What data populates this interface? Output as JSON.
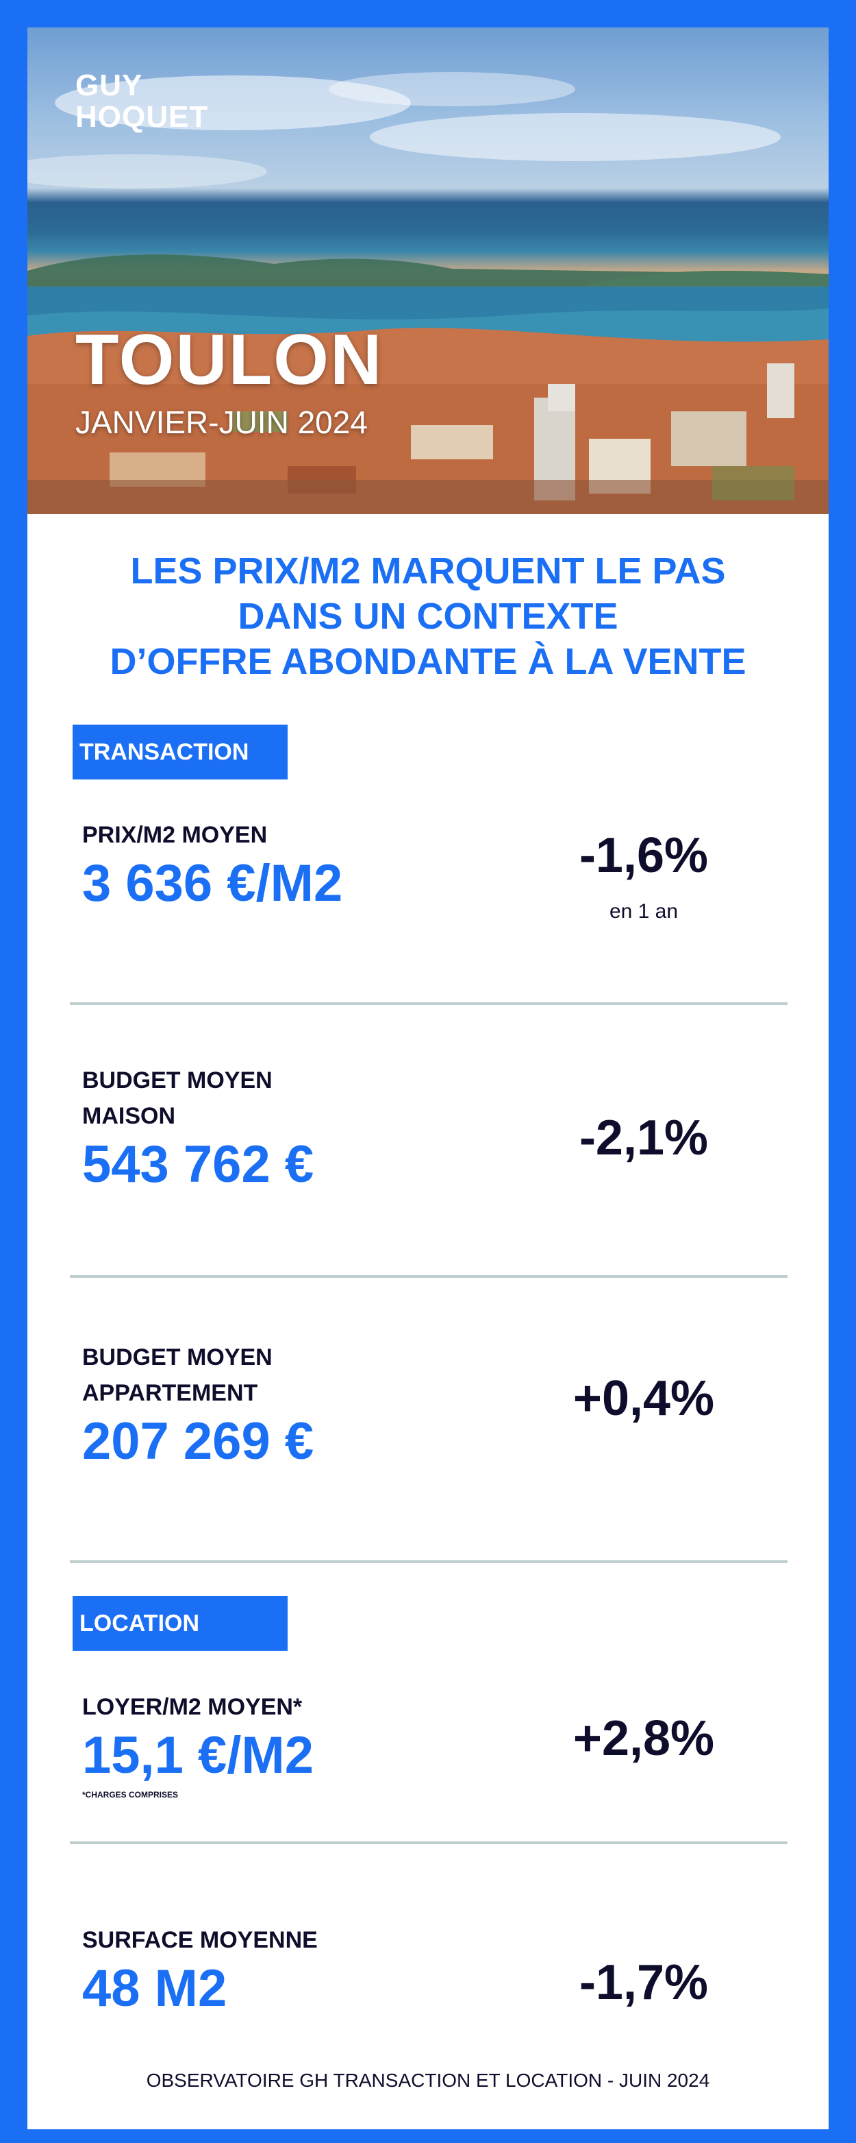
{
  "brand": {
    "logo_line1": "GUY",
    "logo_line2": "HOQUET"
  },
  "hero": {
    "city": "TOULON",
    "period": "JANVIER-JUIN 2024"
  },
  "headline": [
    "LES PRIX/M2 MARQUENT LE PAS",
    "DANS UN CONTEXTE",
    "D’OFFRE ABONDANTE À LA VENTE"
  ],
  "sections": {
    "transaction": "TRANSACTION",
    "location": "LOCATION"
  },
  "metrics": {
    "prix_m2": {
      "label": "PRIX/M2 MOYEN",
      "value": "3 636 €/M2",
      "delta": "-1,6%",
      "delta_note": "en 1 an"
    },
    "budget_maison": {
      "label_line1": "BUDGET MOYEN",
      "label_line2": "MAISON",
      "value": "543 762 €",
      "delta": "-2,1%"
    },
    "budget_appartement": {
      "label_line1": "BUDGET MOYEN",
      "label_line2": "APPARTEMENT",
      "value": "207 269 €",
      "delta": "+0,4%"
    },
    "loyer_m2": {
      "label": "LOYER/M2 MOYEN*",
      "value": "15,1 €/M2",
      "note": "*CHARGES COMPRISES",
      "delta": "+2,8%"
    },
    "surface": {
      "label": "SURFACE MOYENNE",
      "value": "48 M2",
      "delta": "-1,7%"
    }
  },
  "footer": "OBSERVATOIRE GH TRANSACTION ET LOCATION - JUIN 2024",
  "colors": {
    "brand_blue": "#1a6ff5",
    "text_dark": "#0e0e2c",
    "divider": "#bfcfcf"
  }
}
